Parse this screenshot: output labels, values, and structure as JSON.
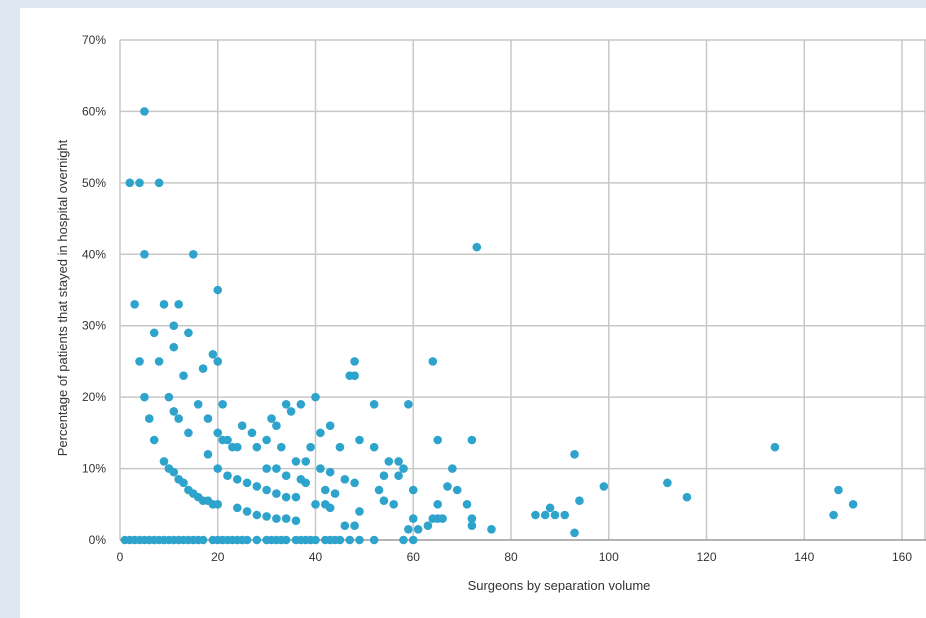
{
  "chart_data": {
    "type": "scatter",
    "xlabel": "Surgeons by separation volume",
    "ylabel": "Percentage of patients that stayed in hospital overnight",
    "xlim": [
      0,
      160
    ],
    "ylim": [
      0,
      70
    ],
    "x_ticks": [
      "0",
      "20",
      "40",
      "60",
      "80",
      "100",
      "120",
      "140",
      "160"
    ],
    "y_ticks": [
      "0%",
      "10%",
      "20%",
      "30%",
      "40%",
      "50%",
      "60%",
      "70%"
    ],
    "grid": true,
    "marker_color": "#2ea3cc",
    "grid_color": "#c8c8c8",
    "points": [
      [
        5,
        60
      ],
      [
        2,
        50
      ],
      [
        4,
        50
      ],
      [
        8,
        50
      ],
      [
        5,
        40
      ],
      [
        15,
        40
      ],
      [
        20,
        35
      ],
      [
        3,
        33
      ],
      [
        9,
        33
      ],
      [
        12,
        33
      ],
      [
        7,
        29
      ],
      [
        11,
        30
      ],
      [
        14,
        29
      ],
      [
        4,
        25
      ],
      [
        8,
        25
      ],
      [
        11,
        27
      ],
      [
        19,
        26
      ],
      [
        20,
        25
      ],
      [
        13,
        23
      ],
      [
        17,
        24
      ],
      [
        5,
        20
      ],
      [
        10,
        20
      ],
      [
        6,
        17
      ],
      [
        11,
        18
      ],
      [
        12,
        17
      ],
      [
        14,
        15
      ],
      [
        16,
        19
      ],
      [
        18,
        17
      ],
      [
        21,
        19
      ],
      [
        7,
        14
      ],
      [
        20,
        15
      ],
      [
        22,
        14
      ],
      [
        23,
        13
      ],
      [
        24,
        13
      ],
      [
        9,
        11
      ],
      [
        10,
        10
      ],
      [
        11,
        9.5
      ],
      [
        12,
        8.5
      ],
      [
        13,
        8
      ],
      [
        14,
        7
      ],
      [
        15,
        6.5
      ],
      [
        16,
        6
      ],
      [
        17,
        5.5
      ],
      [
        18,
        5.5
      ],
      [
        19,
        5
      ],
      [
        20,
        5
      ],
      [
        21,
        14
      ],
      [
        18,
        12
      ],
      [
        20,
        10
      ],
      [
        22,
        9
      ],
      [
        24,
        8.5
      ],
      [
        26,
        8
      ],
      [
        28,
        7.5
      ],
      [
        30,
        7
      ],
      [
        32,
        6.5
      ],
      [
        34,
        6
      ],
      [
        36,
        6
      ],
      [
        24,
        4.5
      ],
      [
        26,
        4
      ],
      [
        28,
        3.5
      ],
      [
        30,
        3.3
      ],
      [
        32,
        3
      ],
      [
        34,
        3
      ],
      [
        36,
        2.7
      ],
      [
        25,
        16
      ],
      [
        27,
        15
      ],
      [
        28,
        13
      ],
      [
        30,
        14
      ],
      [
        31,
        17
      ],
      [
        32,
        16
      ],
      [
        33,
        13
      ],
      [
        34,
        19
      ],
      [
        35,
        18
      ],
      [
        37,
        19
      ],
      [
        36,
        11
      ],
      [
        38,
        11
      ],
      [
        30,
        10
      ],
      [
        32,
        10
      ],
      [
        34,
        9
      ],
      [
        37,
        8.5
      ],
      [
        38,
        8
      ],
      [
        40,
        5
      ],
      [
        42,
        5
      ],
      [
        43,
        4.5
      ],
      [
        39,
        13
      ],
      [
        41,
        15
      ],
      [
        43,
        16
      ],
      [
        45,
        13
      ],
      [
        41,
        10
      ],
      [
        43,
        9.5
      ],
      [
        46,
        8.5
      ],
      [
        48,
        8
      ],
      [
        47,
        23
      ],
      [
        48,
        23
      ],
      [
        48,
        25
      ],
      [
        49,
        14
      ],
      [
        52,
        13
      ],
      [
        40,
        20
      ],
      [
        42,
        7
      ],
      [
        44,
        6.5
      ],
      [
        46,
        2
      ],
      [
        48,
        2
      ],
      [
        49,
        4
      ],
      [
        52,
        19
      ],
      [
        53,
        7
      ],
      [
        54,
        5.5
      ],
      [
        54,
        9
      ],
      [
        55,
        11
      ],
      [
        57,
        11
      ],
      [
        57,
        9
      ],
      [
        58,
        10
      ],
      [
        59,
        19
      ],
      [
        60,
        7
      ],
      [
        60,
        3
      ],
      [
        61,
        1.5
      ],
      [
        56,
        5
      ],
      [
        59,
        1.5
      ],
      [
        63,
        2
      ],
      [
        64,
        3
      ],
      [
        65,
        3
      ],
      [
        65,
        5
      ],
      [
        66,
        3
      ],
      [
        64,
        25
      ],
      [
        65,
        14
      ],
      [
        67,
        7.5
      ],
      [
        68,
        10
      ],
      [
        69,
        7
      ],
      [
        71,
        5
      ],
      [
        72,
        14
      ],
      [
        72,
        3
      ],
      [
        72,
        2
      ],
      [
        73,
        41
      ],
      [
        76,
        1.5
      ],
      [
        85,
        3.5
      ],
      [
        87,
        3.5
      ],
      [
        88,
        4.5
      ],
      [
        89,
        3.5
      ],
      [
        91,
        3.5
      ],
      [
        93,
        12
      ],
      [
        93,
        1
      ],
      [
        94,
        5.5
      ],
      [
        99,
        7.5
      ],
      [
        112,
        8
      ],
      [
        116,
        6
      ],
      [
        134,
        13
      ],
      [
        146,
        3.5
      ],
      [
        147,
        7
      ],
      [
        150,
        5
      ],
      [
        1,
        0
      ],
      [
        2,
        0
      ],
      [
        3,
        0
      ],
      [
        4,
        0
      ],
      [
        5,
        0
      ],
      [
        6,
        0
      ],
      [
        7,
        0
      ],
      [
        8,
        0
      ],
      [
        9,
        0
      ],
      [
        10,
        0
      ],
      [
        11,
        0
      ],
      [
        12,
        0
      ],
      [
        13,
        0
      ],
      [
        14,
        0
      ],
      [
        15,
        0
      ],
      [
        16,
        0
      ],
      [
        17,
        0
      ],
      [
        19,
        0
      ],
      [
        20,
        0
      ],
      [
        21,
        0
      ],
      [
        22,
        0
      ],
      [
        23,
        0
      ],
      [
        24,
        0
      ],
      [
        25,
        0
      ],
      [
        26,
        0
      ],
      [
        28,
        0
      ],
      [
        30,
        0
      ],
      [
        31,
        0
      ],
      [
        32,
        0
      ],
      [
        33,
        0
      ],
      [
        34,
        0
      ],
      [
        36,
        0
      ],
      [
        37,
        0
      ],
      [
        38,
        0
      ],
      [
        39,
        0
      ],
      [
        40,
        0
      ],
      [
        42,
        0
      ],
      [
        43,
        0
      ],
      [
        44,
        0
      ],
      [
        45,
        0
      ],
      [
        47,
        0
      ],
      [
        49,
        0
      ],
      [
        52,
        0
      ],
      [
        58,
        0
      ],
      [
        60,
        0
      ]
    ]
  }
}
